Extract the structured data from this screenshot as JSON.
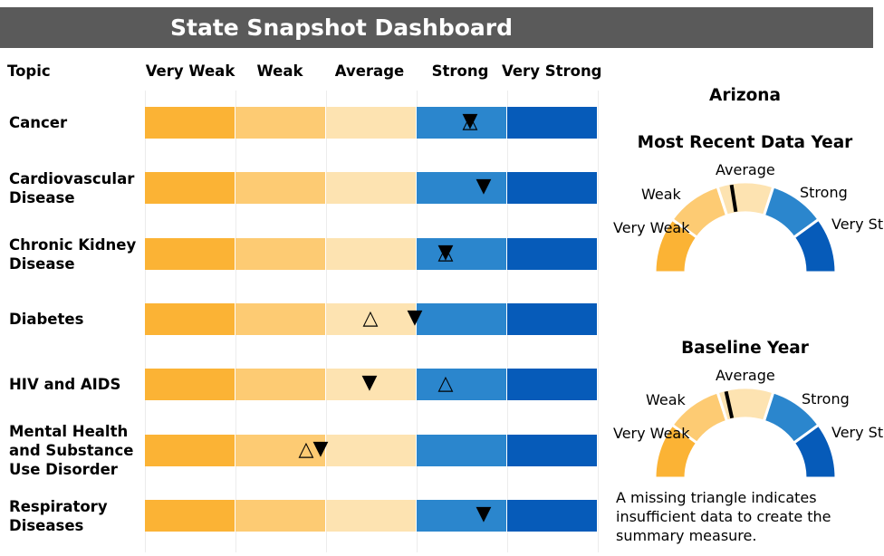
{
  "title": "State Snapshot Dashboard",
  "headers": [
    "Topic",
    "Very Weak",
    "Weak",
    "Average",
    "Strong",
    "Very Strong"
  ],
  "state": "Arizona",
  "colors": {
    "very_weak": "#fbb335",
    "weak": "#fdcb73",
    "average": "#fde3b1",
    "strong": "#2b86cd",
    "very_strong": "#065bb9"
  },
  "chart_data": {
    "type": "dot-range",
    "categories": [
      "Very Weak",
      "Weak",
      "Average",
      "Strong",
      "Very Strong"
    ],
    "legend_symbols": [
      "open-triangle-up",
      "filled-triangle-down"
    ],
    "rows": [
      {
        "topic": "Cancer",
        "open_up": 3.59,
        "filled_down": 3.59
      },
      {
        "topic": "Cardiovascular Disease",
        "open_up": null,
        "filled_down": 3.74
      },
      {
        "topic": "Chronic Kidney Disease",
        "open_up": 3.32,
        "filled_down": 3.32
      },
      {
        "topic": "Diabetes",
        "open_up": 2.49,
        "filled_down": 2.98
      },
      {
        "topic": "HIV and AIDS",
        "open_up": 3.32,
        "filled_down": 2.48
      },
      {
        "topic": "Mental Health and Substance Use Disorder",
        "open_up": 1.78,
        "filled_down": 1.94
      },
      {
        "topic": "Respiratory Diseases",
        "open_up": null,
        "filled_down": 3.74
      }
    ],
    "gauges": [
      {
        "title": "Most Recent Data Year",
        "labels": [
          "Very Weak",
          "Weak",
          "Average",
          "Strong",
          "Very Strong"
        ],
        "needle": 0.45
      },
      {
        "title": "Baseline Year",
        "labels": [
          "Very Weak",
          "Weak",
          "Average",
          "Strong",
          "Very Strong"
        ],
        "needle": 0.43
      }
    ]
  },
  "note": "A missing triangle indicates insufficient data to create the summary measure."
}
